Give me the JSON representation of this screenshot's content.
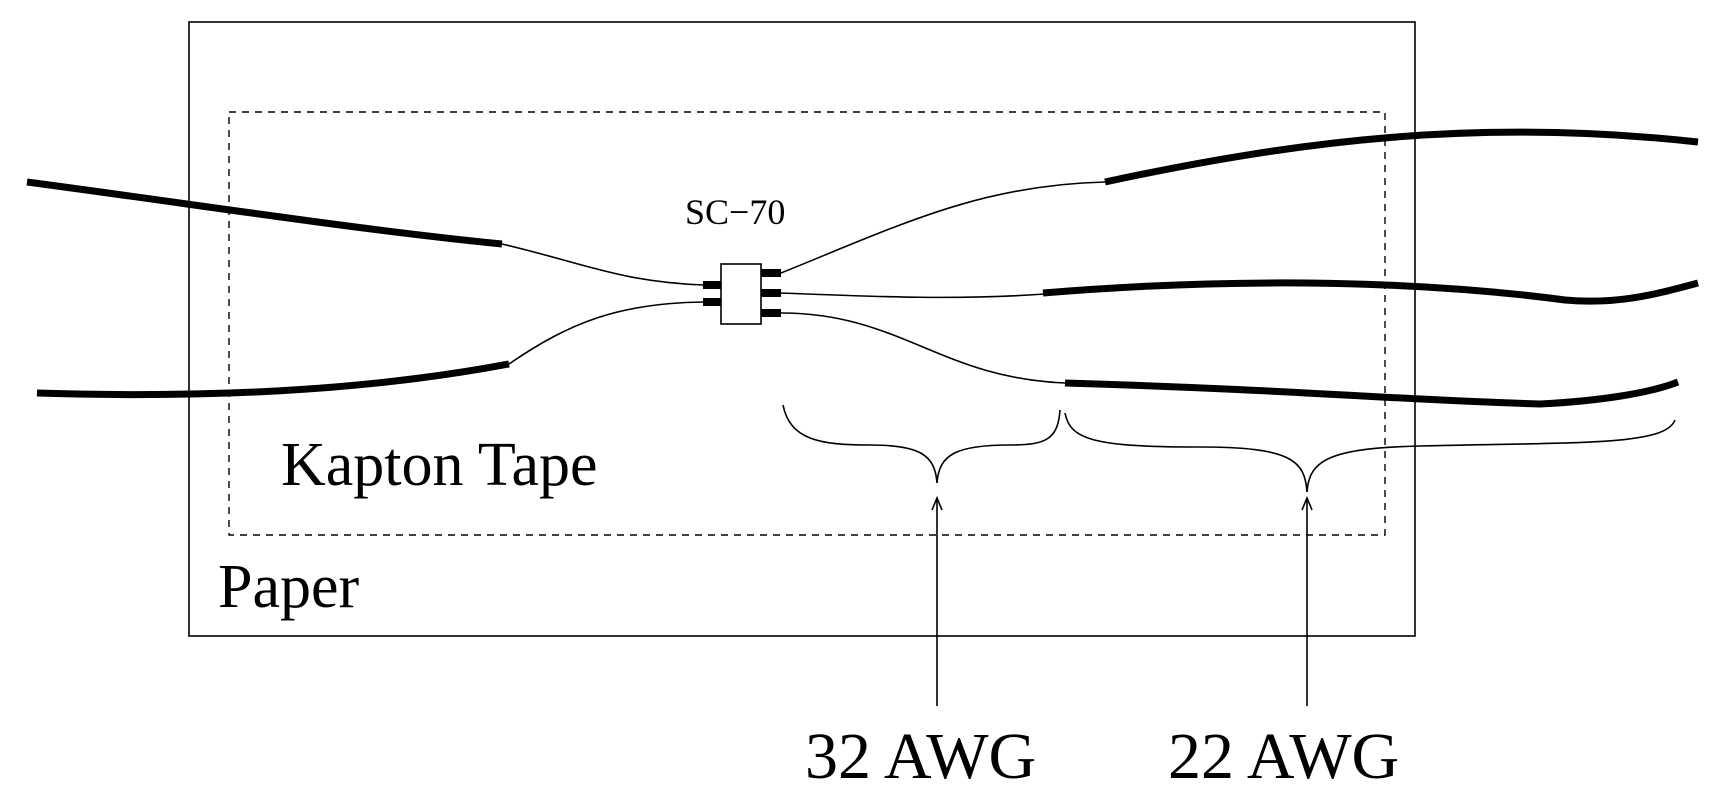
{
  "labels": {
    "paper": "Paper",
    "kapton_tape": "Kapton Tape",
    "package": "SC−70",
    "wire_thin": "32 AWG",
    "wire_thick": "22 AWG"
  },
  "colors": {
    "line": "#000000",
    "background": "#ffffff"
  }
}
